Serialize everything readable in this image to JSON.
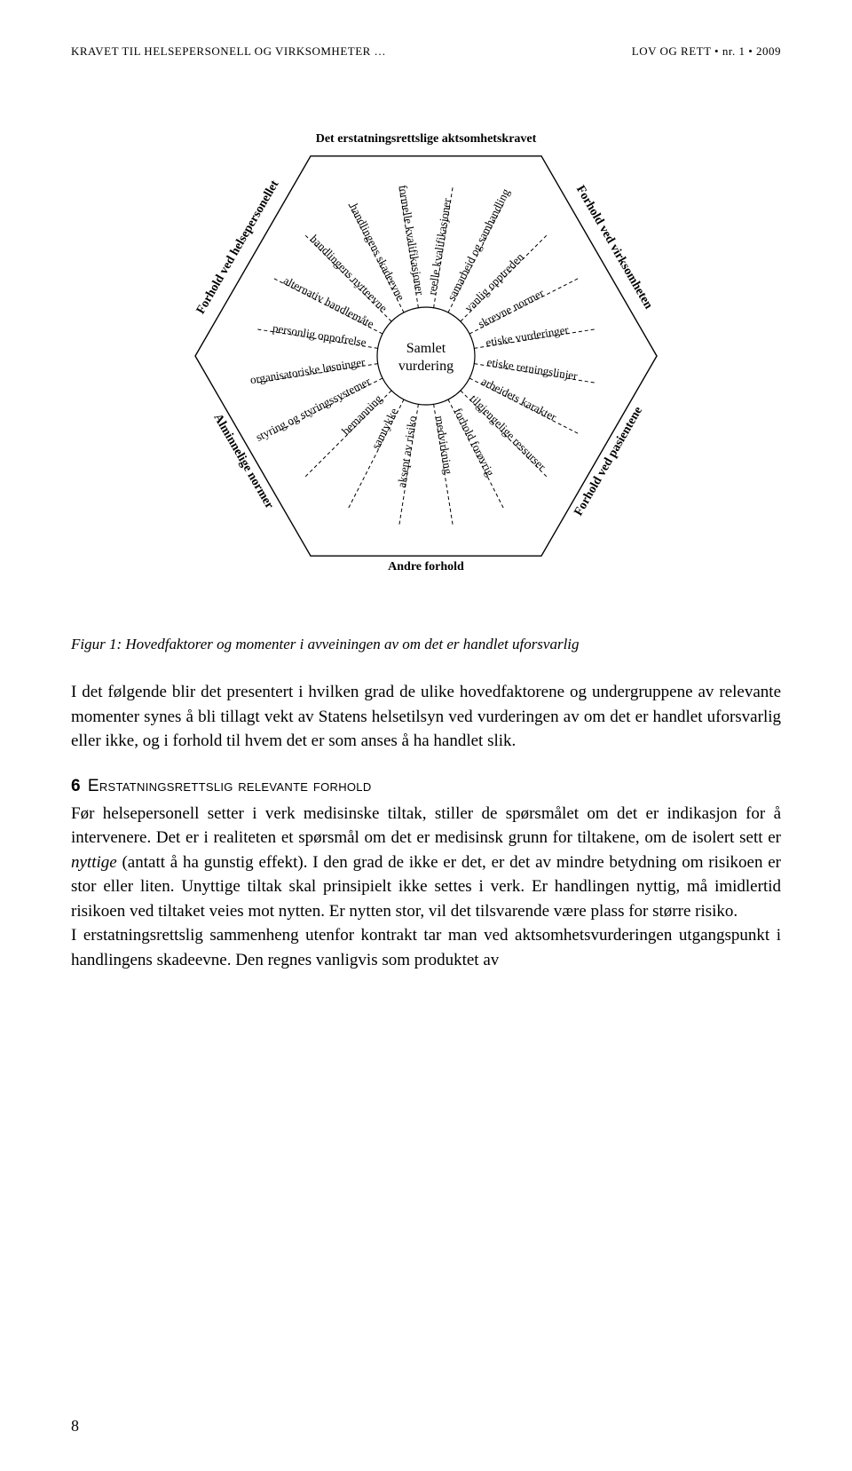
{
  "header": {
    "left": "KRAVET TIL HELSEPERSONELL OG VIRKSOMHETER …",
    "right": "LOV OG RETT • nr. 1 • 2009"
  },
  "diagram": {
    "type": "radial-hexagon",
    "center": {
      "line1": "Samlet",
      "line2": "vurdering"
    },
    "axes": [
      "Det erstatningsrettslige aktsomhetskravet",
      "Forhold ved virksomheten",
      "Forhold ved pasientene",
      "Andre forhold",
      "Alminnelige normer",
      "Forhold ved helsepersonellet"
    ],
    "spokes": [
      "formelle kvalifikasjoner",
      "reelle kvalifikasjoner",
      "samarbeid og samhandling",
      "vanlig opptreden",
      "skrevne normer",
      "etiske vurderinger",
      "etiske retningslinjer",
      "arbeidets karakter",
      "tilgjengelige ressurser",
      "forhold forøvrig",
      "medvirkning",
      "aksept av risiko",
      "samtykke",
      "bemanning",
      "styring og styringssystemer",
      "organisatoriske løsninger",
      "personlig oppofrelse",
      "alternativ handlemåte",
      "handlingens nytteevne",
      "handlingens skadeevne"
    ],
    "style": {
      "stroke": "#000000",
      "dash": "4 3",
      "hex_stroke_width": 1.4,
      "circle_radius": 55,
      "hex_radius": 260,
      "spoke_inner": 55,
      "spoke_outer": 195,
      "label_offset": 6,
      "background": "#ffffff",
      "label_fontsize": 13,
      "axis_fontsize": 14
    }
  },
  "caption": "Figur 1: Hovedfaktorer og momenter i avveiningen av om det er handlet uforsvarlig",
  "intro_para": "I det følgende blir det presentert i hvilken grad de ulike hovedfaktorene og undergruppene av relevante momenter synes å bli tillagt vekt av Statens helsetilsyn ved vurderingen av om det er handlet uforsvarlig eller ikke, og i forhold til hvem det er som anses å ha handlet slik.",
  "section": {
    "num": "6",
    "title": "Erstatningsrettslig relevante forhold",
    "body_parts": {
      "p1a": "Før helsepersonell setter i verk medisinske tiltak, stiller de spørsmålet om det er indikasjon for å intervenere. Det er i realiteten et spørsmål om det er medisinsk grunn for tiltakene, om de isolert sett er ",
      "p1b_em": "nyttige",
      "p1c": " (antatt å ha gunstig effekt). I den grad de ikke er det, er det av mindre betydning om risikoen er stor eller liten. Unyttige tiltak skal prinsipielt ikke settes i verk. Er handlingen nyttig, må imidlertid risikoen ved tiltaket veies mot nytten. Er nytten stor, vil det tilsvarende være plass for større risiko.",
      "p2": "I erstatningsrettslig sammenheng utenfor kontrakt tar man ved aktsomhetsvurderingen utgangspunkt i handlingens skadeevne. Den regnes vanligvis som produktet av"
    }
  },
  "page_number": "8"
}
